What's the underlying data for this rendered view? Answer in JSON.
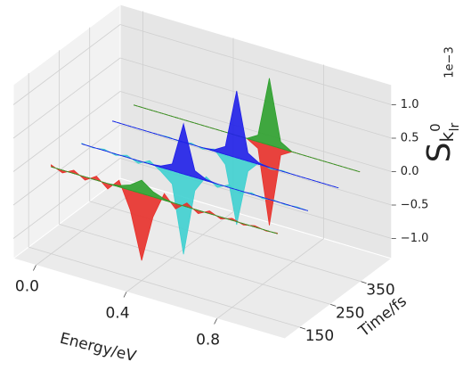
{
  "chart_data": {
    "type": "waterfall3d",
    "xlabel": "Energy/eV",
    "ylabel": "Time/fs",
    "zlabel": {
      "base": "S",
      "sub": "k",
      "sup": "0",
      "subsub": "lr"
    },
    "z_offset_label": "1e−3",
    "xlim": [
      -0.1,
      1.1
    ],
    "ylim": [
      100,
      450
    ],
    "zlim": [
      -1.3,
      1.3
    ],
    "xticks": [
      {
        "value": 0,
        "label": "0.0"
      },
      0.4,
      0.8
    ],
    "yticks": [
      150,
      250,
      350
    ],
    "zticks": [
      {
        "value": -1,
        "label": "−1.0"
      },
      {
        "value": -0.5,
        "label": "−0.5"
      },
      {
        "value": 0,
        "label": "0.0"
      },
      0.5,
      {
        "value": 1,
        "label": "1.0"
      }
    ],
    "grid": true,
    "x": [
      0,
      0.05,
      0.1,
      0.15,
      0.2,
      0.25,
      0.3,
      0.35,
      0.4,
      0.45,
      0.5,
      0.55,
      0.6,
      0.65,
      0.7,
      0.75,
      0.8,
      0.85,
      0.9,
      0.95,
      1.0
    ],
    "series": [
      {
        "color": "#e8302a",
        "time": 150,
        "values": [
          0.03,
          -0.04,
          0.05,
          -0.05,
          0.06,
          -0.08,
          0.1,
          -0.3,
          -1.0,
          -0.3,
          0.1,
          -0.08,
          0.06,
          -0.05,
          0.04,
          -0.03,
          0.03,
          -0.02,
          0.02,
          -0.01,
          0.01
        ]
      },
      {
        "color": "#2ca02c",
        "time": 150,
        "values": [
          0,
          0,
          0,
          0,
          0,
          0,
          0.02,
          0.08,
          0.2,
          0.08,
          0.02,
          0,
          0,
          0,
          0,
          0,
          0,
          0,
          0,
          0,
          0
        ]
      },
      {
        "color": "#3fd0d0",
        "time": 250,
        "values": [
          0.01,
          -0.01,
          0.02,
          -0.02,
          0.03,
          -0.04,
          0.05,
          -0.06,
          -0.2,
          -1.2,
          -0.2,
          0.06,
          -0.05,
          0.04,
          -0.03,
          0.02,
          -0.02,
          0.01,
          -0.01,
          0.01,
          0
        ]
      },
      {
        "color": "#1f1fe8",
        "time": 250,
        "values": [
          0,
          0,
          0,
          0,
          0,
          0,
          0,
          0.02,
          0.1,
          0.75,
          0.1,
          0.02,
          0,
          0,
          0,
          0,
          0,
          0,
          0,
          0,
          0
        ]
      },
      {
        "color": "#3fd0d0",
        "time": 350,
        "values": [
          0,
          0,
          0,
          0,
          0,
          0.01,
          -0.01,
          0.02,
          -0.02,
          0.03,
          -0.15,
          -1.0,
          -0.15,
          0.03,
          -0.02,
          0.01,
          0,
          0,
          0,
          0,
          0
        ]
      },
      {
        "color": "#1f1fe8",
        "time": 350,
        "values": [
          0,
          0,
          0,
          0,
          0,
          0,
          0,
          0,
          0,
          0.02,
          0.12,
          1.0,
          0.12,
          0.02,
          0,
          0,
          0,
          0,
          0,
          0,
          0
        ]
      },
      {
        "color": "#e8302a",
        "time": 420,
        "values": [
          0,
          0,
          0,
          0,
          0,
          0,
          0,
          0,
          0,
          0,
          0,
          -0.1,
          -1.2,
          -0.1,
          0,
          0,
          0,
          0,
          0,
          0,
          0
        ]
      },
      {
        "color": "#2ca02c",
        "time": 420,
        "values": [
          0,
          0,
          0,
          0,
          0,
          0,
          0,
          0,
          0,
          0,
          0,
          0.1,
          1.0,
          0.1,
          0,
          0,
          0,
          0,
          0,
          0,
          0
        ]
      }
    ]
  }
}
